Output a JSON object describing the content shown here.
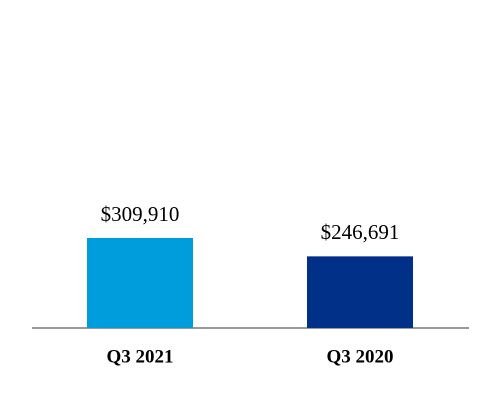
{
  "chart_data": {
    "type": "bar",
    "categories": [
      "Q3 2021",
      "Q3 2020"
    ],
    "values": [
      309910,
      246691
    ],
    "value_labels": [
      "$309,910",
      "$246,691"
    ],
    "colors": [
      "#009ddc",
      "#003087"
    ]
  }
}
